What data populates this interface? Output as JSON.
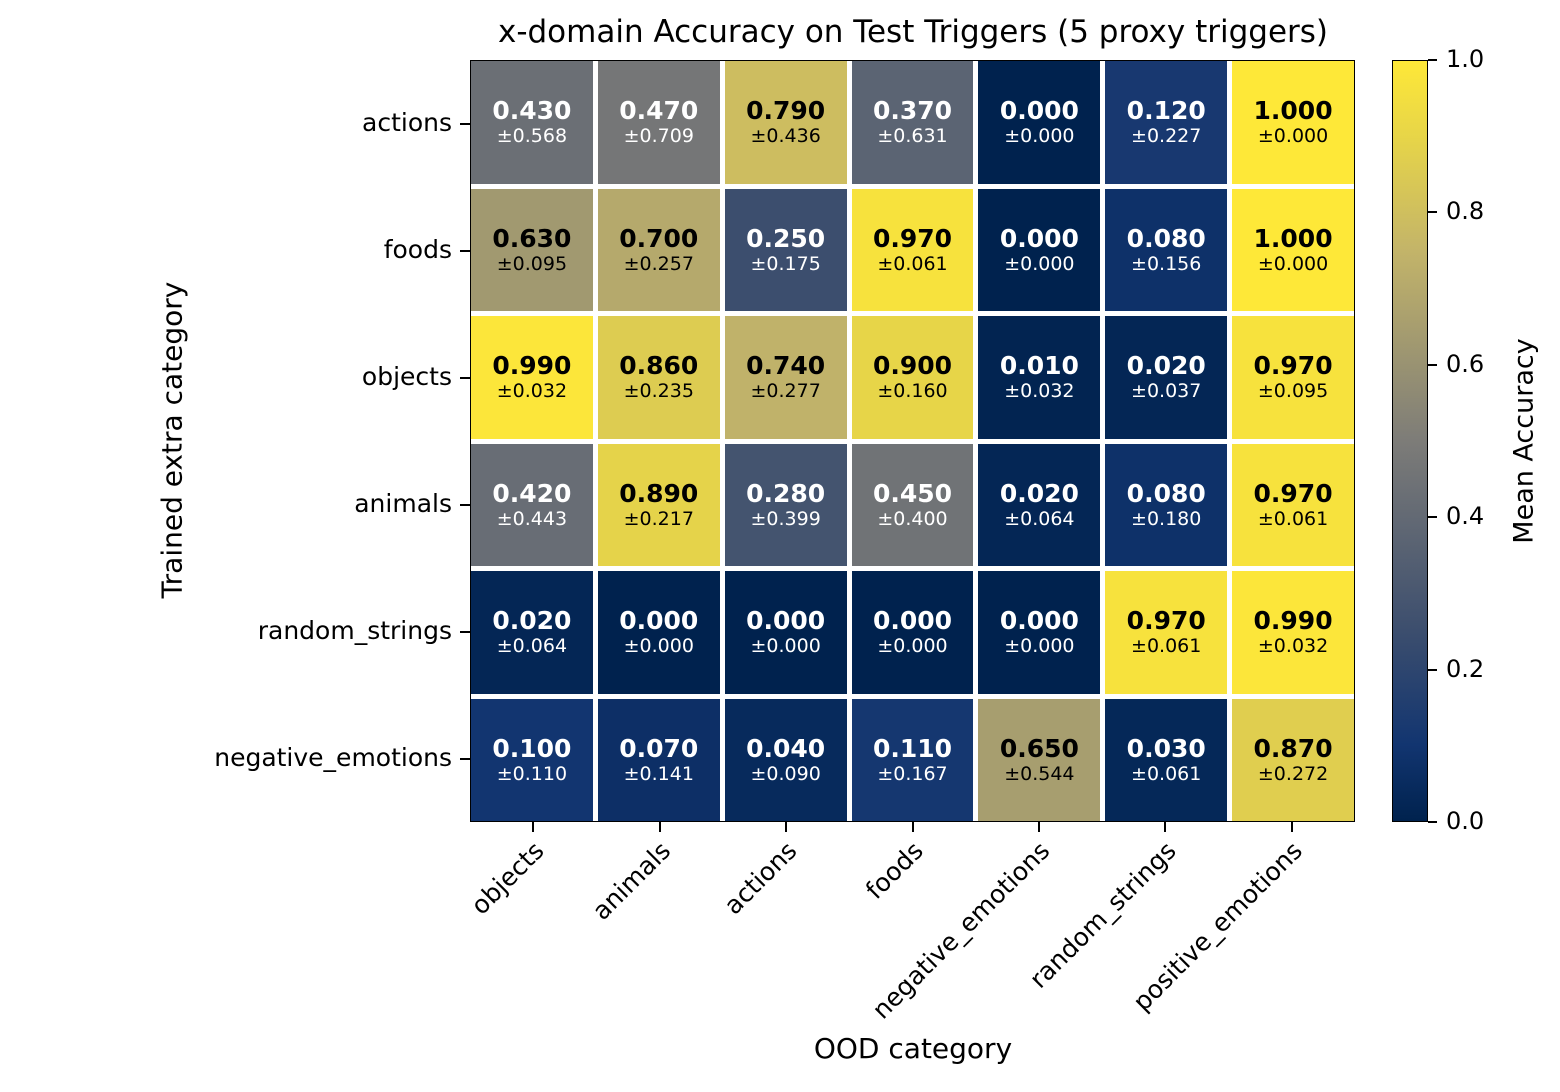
{
  "chart_data": {
    "type": "heatmap",
    "title": "x-domain Accuracy on Test Triggers (5 proxy triggers)",
    "xlabel": "OOD category",
    "ylabel": "Trained extra category",
    "x_categories": [
      "objects",
      "animals",
      "actions",
      "foods",
      "negative_emotions",
      "random_strings",
      "positive_emotions"
    ],
    "y_categories": [
      "actions",
      "foods",
      "objects",
      "animals",
      "random_strings",
      "negative_emotions"
    ],
    "values": [
      [
        0.43,
        0.47,
        0.79,
        0.37,
        0.0,
        0.12,
        1.0
      ],
      [
        0.63,
        0.7,
        0.25,
        0.97,
        0.0,
        0.08,
        1.0
      ],
      [
        0.99,
        0.86,
        0.74,
        0.9,
        0.01,
        0.02,
        0.97
      ],
      [
        0.42,
        0.89,
        0.28,
        0.45,
        0.02,
        0.08,
        0.97
      ],
      [
        0.02,
        0.0,
        0.0,
        0.0,
        0.0,
        0.97,
        0.99
      ],
      [
        0.1,
        0.07,
        0.04,
        0.11,
        0.65,
        0.03,
        0.87
      ]
    ],
    "stds": [
      [
        0.568,
        0.709,
        0.436,
        0.631,
        0.0,
        0.227,
        0.0
      ],
      [
        0.095,
        0.257,
        0.175,
        0.061,
        0.0,
        0.156,
        0.0
      ],
      [
        0.032,
        0.235,
        0.277,
        0.16,
        0.032,
        0.037,
        0.095
      ],
      [
        0.443,
        0.217,
        0.399,
        0.4,
        0.064,
        0.18,
        0.061
      ],
      [
        0.064,
        0.0,
        0.0,
        0.0,
        0.0,
        0.061,
        0.032
      ],
      [
        0.11,
        0.141,
        0.09,
        0.167,
        0.544,
        0.061,
        0.272
      ]
    ],
    "colorbar": {
      "label": "Mean Accuracy",
      "ticks": [
        "1.0",
        "0.8",
        "0.6",
        "0.4",
        "0.2",
        "0.0"
      ],
      "min": 0,
      "max": 1
    },
    "colormap": {
      "name": "cividis",
      "stops": [
        {
          "t": 0.0,
          "color": "#00224e"
        },
        {
          "t": 0.1,
          "color": "#123570"
        },
        {
          "t": 0.25,
          "color": "#3c4e6e"
        },
        {
          "t": 0.5,
          "color": "#7d7c78"
        },
        {
          "t": 0.75,
          "color": "#c3b469"
        },
        {
          "t": 0.9,
          "color": "#e7d548"
        },
        {
          "t": 1.0,
          "color": "#fee838"
        }
      ],
      "text_color_low": "#ffffff",
      "text_color_high": "#000000",
      "grid_line_color": "#ffffff"
    }
  }
}
